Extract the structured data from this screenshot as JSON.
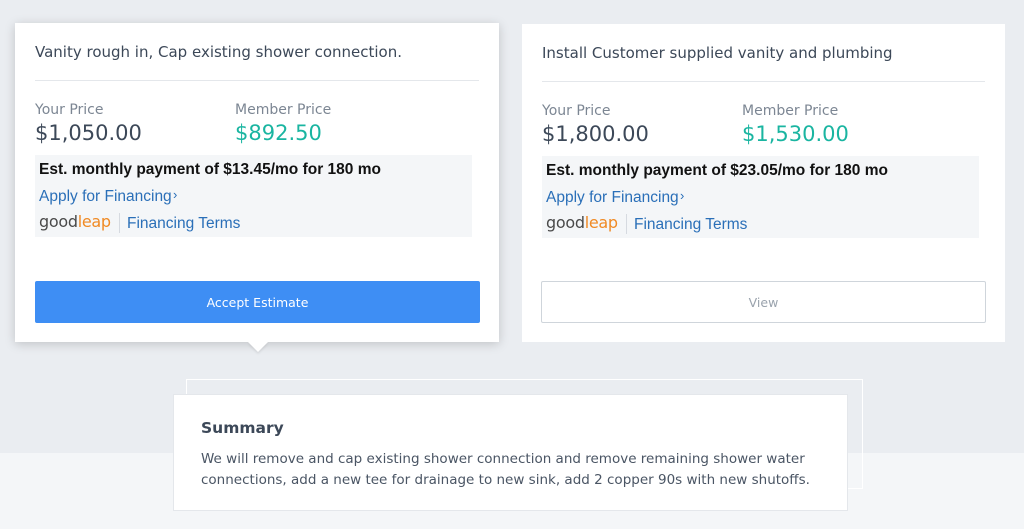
{
  "estimates": [
    {
      "title": "Vanity rough in, Cap existing shower connection.",
      "your_price_label": "Your Price",
      "your_price": "$1,050.00",
      "member_price_label": "Member Price",
      "member_price": "$892.50",
      "monthly_payment": "Est. monthly payment of $13.45/mo for 180 mo",
      "apply_label": "Apply for Financing",
      "chevron": "›",
      "logo_good": "good",
      "logo_leap": "leap",
      "terms_label": "Financing Terms",
      "action_label": "Accept Estimate"
    },
    {
      "title": "Install Customer supplied vanity and plumbing",
      "your_price_label": "Your Price",
      "your_price": "$1,800.00",
      "member_price_label": "Member Price",
      "member_price": "$1,530.00",
      "monthly_payment": "Est. monthly payment of $23.05/mo for 180 mo",
      "apply_label": "Apply for Financing",
      "chevron": "›",
      "logo_good": "good",
      "logo_leap": "leap",
      "terms_label": "Financing Terms",
      "action_label": "View"
    }
  ],
  "summary": {
    "title": "Summary",
    "text": "We will remove and cap existing shower connection and remove remaining shower water connections, add a new tee for drainage to new sink, add 2 copper 90s with new shutoffs."
  },
  "colors": {
    "accent": "#3e8ef4",
    "member_price": "#1ab5a1",
    "link": "#2a6fb8",
    "logo_orange": "#f08a24"
  }
}
